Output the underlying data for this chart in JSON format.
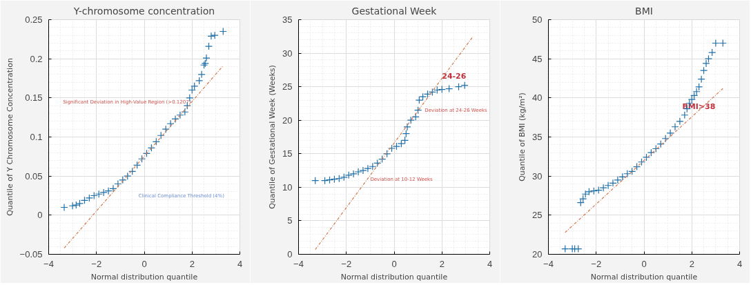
{
  "chart_data": [
    {
      "type": "scatter",
      "title": "Y-chromosome concentration",
      "xlabel": "Normal distribution quantile",
      "ylabel": "Quantile of Y Chromosome Concentration",
      "xlim": [
        -4,
        4
      ],
      "xticks": [
        -4,
        -2,
        0,
        2,
        4
      ],
      "ylim": [
        -0.05,
        0.25
      ],
      "yticks": [
        -0.05,
        0,
        0.05,
        0.1,
        0.15,
        0.2,
        0.25
      ],
      "grid": true,
      "annotations": [
        "Significant Deviation in High-Value Region (>0.1207)",
        "Clinical Compliance Threshold (4%)"
      ],
      "series": [
        {
          "marker": "cross",
          "color": "#1f6fa8",
          "x": [
            -3.35,
            -3.0,
            -2.85,
            -2.7,
            -2.5,
            -2.3,
            -2.1,
            -1.9,
            -1.7,
            -1.5,
            -1.3,
            -1.1,
            -0.9,
            -0.7,
            -0.5,
            -0.3,
            -0.1,
            0.1,
            0.3,
            0.5,
            0.7,
            0.9,
            1.1,
            1.3,
            1.5,
            1.7,
            1.8,
            1.9,
            2.0,
            2.1,
            2.3,
            2.4,
            2.5,
            2.55,
            2.6,
            2.7,
            2.8,
            2.95,
            3.3
          ],
          "values": [
            0.01,
            0.012,
            0.013,
            0.015,
            0.019,
            0.022,
            0.025,
            0.027,
            0.029,
            0.031,
            0.034,
            0.04,
            0.045,
            0.05,
            0.056,
            0.064,
            0.072,
            0.079,
            0.086,
            0.094,
            0.102,
            0.11,
            0.117,
            0.123,
            0.128,
            0.132,
            0.14,
            0.15,
            0.16,
            0.165,
            0.172,
            0.18,
            0.192,
            0.194,
            0.201,
            0.216,
            0.229,
            0.23,
            0.235
          ]
        },
        {
          "type": "line",
          "color": "#d0784e",
          "line_style": "dashed",
          "x": [
            -3.35,
            3.3
          ],
          "values": [
            -0.042,
            0.191
          ]
        }
      ]
    },
    {
      "type": "scatter",
      "title": "Gestational Week",
      "xlabel": "Normal distribution quantile",
      "ylabel": "Quantile of Gestational Week (Weeks)",
      "xlim": [
        -4,
        4
      ],
      "xticks": [
        -4,
        -2,
        0,
        2,
        4
      ],
      "ylim": [
        0,
        35
      ],
      "yticks": [
        0,
        5,
        10,
        15,
        20,
        25,
        30,
        35
      ],
      "grid": true,
      "annotations": [
        {
          "text": "24-26",
          "x": 2.0,
          "y": 26.6
        },
        "Deviation at 24-26 Weeks",
        {
          "text": "Deviation at 10-12 Weeks",
          "x": -1.0,
          "y": 11.2
        }
      ],
      "series": [
        {
          "marker": "cross",
          "color": "#1f6fa8",
          "x": [
            -3.3,
            -2.9,
            -2.7,
            -2.5,
            -2.3,
            -2.1,
            -1.9,
            -1.7,
            -1.5,
            -1.3,
            -1.1,
            -0.9,
            -0.7,
            -0.5,
            -0.3,
            -0.1,
            0.1,
            0.3,
            0.45,
            0.5,
            0.55,
            0.7,
            0.9,
            1.0,
            1.05,
            1.2,
            1.4,
            1.6,
            1.8,
            2.0,
            2.3,
            2.7,
            2.95
          ],
          "values": [
            11.0,
            11.0,
            11.1,
            11.2,
            11.3,
            11.5,
            11.8,
            12.0,
            12.3,
            12.5,
            12.8,
            13.1,
            13.6,
            14.2,
            15.0,
            15.8,
            16.1,
            16.5,
            17.0,
            18.0,
            19.0,
            20.0,
            20.5,
            21.5,
            23.0,
            23.5,
            23.9,
            24.2,
            24.5,
            24.6,
            24.7,
            25.0,
            25.2
          ]
        },
        {
          "type": "line",
          "color": "#d0784e",
          "line_style": "dashed",
          "x": [
            -3.3,
            3.3
          ],
          "values": [
            0.7,
            32.5
          ]
        }
      ]
    },
    {
      "type": "scatter",
      "title": "BMI",
      "xlabel": "Normal distribution quantile",
      "ylabel": "Quantile of BMI (kg/m²)",
      "xlim": [
        -4,
        4
      ],
      "xticks": [
        -4,
        -2,
        0,
        2,
        4
      ],
      "ylim": [
        20,
        50
      ],
      "yticks": [
        20,
        25,
        30,
        35,
        40,
        45,
        50
      ],
      "grid": true,
      "annotations": [
        {
          "text": "BMI>38",
          "x": 1.6,
          "y": 38.9
        }
      ],
      "series": [
        {
          "marker": "cross",
          "color": "#1f6fa8",
          "x": [
            -3.3,
            -3.0,
            -2.9,
            -2.75,
            -2.65,
            -2.55,
            -2.45,
            -2.3,
            -2.1,
            -1.9,
            -1.7,
            -1.5,
            -1.3,
            -1.1,
            -0.9,
            -0.7,
            -0.5,
            -0.3,
            -0.1,
            0.1,
            0.3,
            0.5,
            0.7,
            0.9,
            1.1,
            1.3,
            1.5,
            1.7,
            1.8,
            1.9,
            2.0,
            2.1,
            2.2,
            2.3,
            2.4,
            2.5,
            2.6,
            2.7,
            2.85,
            3.0,
            3.3
          ],
          "values": [
            20.7,
            20.7,
            20.7,
            20.7,
            26.6,
            27.1,
            27.7,
            28.0,
            28.1,
            28.2,
            28.5,
            28.8,
            29.1,
            29.5,
            29.9,
            30.3,
            30.6,
            31.2,
            31.8,
            32.4,
            33.0,
            33.5,
            34.1,
            34.8,
            35.5,
            36.3,
            37.0,
            37.8,
            38.6,
            39.3,
            39.8,
            40.3,
            40.8,
            41.4,
            42.4,
            43.5,
            44.4,
            45.0,
            45.8,
            47.0,
            47.0
          ]
        },
        {
          "type": "line",
          "color": "#d0784e",
          "line_style": "dashed",
          "x": [
            -3.3,
            3.3
          ],
          "values": [
            22.8,
            41.2
          ]
        }
      ]
    }
  ]
}
